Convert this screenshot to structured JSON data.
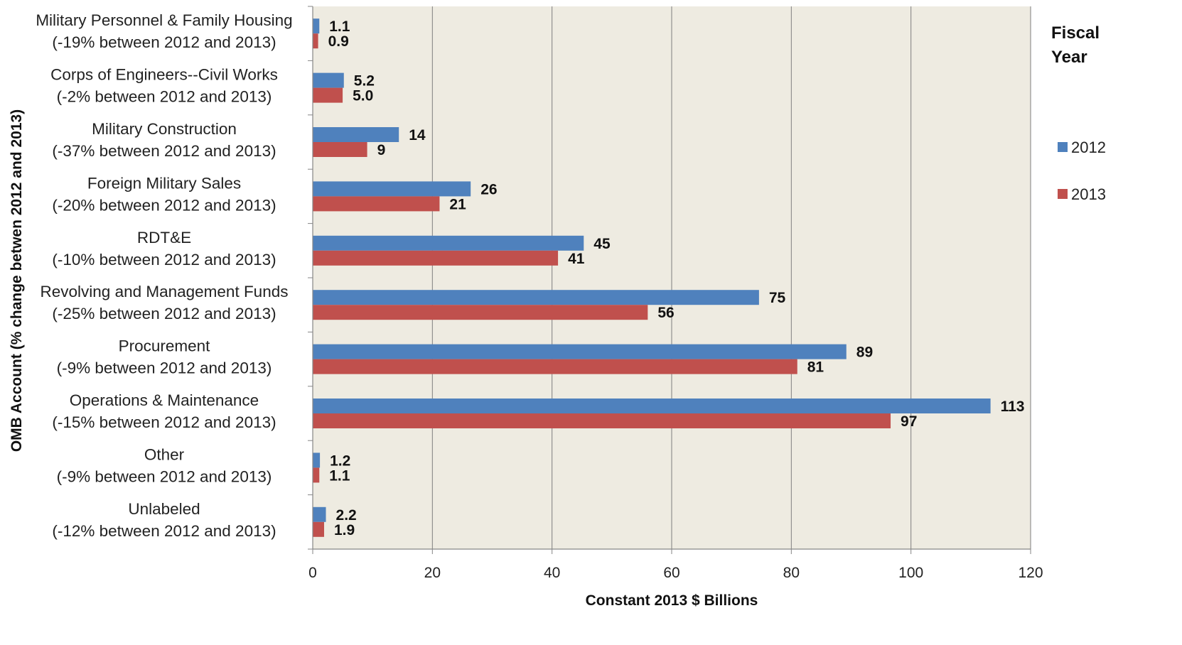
{
  "chart_data": {
    "type": "bar",
    "orientation": "horizontal",
    "xlabel": "Constant 2013 $ Billions",
    "ylabel": "OMB Account (% change betwen 2012 and 2013)",
    "xlim": [
      0,
      120
    ],
    "xticks": [
      "0",
      "20",
      "40",
      "60",
      "80",
      "100",
      "120"
    ],
    "grid": "vertical gridlines",
    "legend_title": [
      "Fiscal",
      "Year"
    ],
    "legend_position": "right",
    "categories": [
      {
        "name": "Military Personnel & Family Housing",
        "note": "(-19% between 2012 and 2013)"
      },
      {
        "name": "Corps of Engineers--Civil Works",
        "note": "(-2% between 2012 and 2013)"
      },
      {
        "name": "Military Construction",
        "note": "(-37% between 2012 and 2013)"
      },
      {
        "name": "Foreign Military Sales",
        "note": "(-20% between 2012 and 2013)"
      },
      {
        "name": "RDT&E",
        "note": "(-10% between 2012 and 2013)"
      },
      {
        "name": "Revolving and Management Funds",
        "note": "(-25% between 2012 and 2013)"
      },
      {
        "name": "Procurement",
        "note": "(-9% between 2012 and 2013)"
      },
      {
        "name": "Operations & Maintenance",
        "note": "(-15% between 2012 and 2013)"
      },
      {
        "name": "Other",
        "note": "(-9% between 2012 and 2013)"
      },
      {
        "name": "Unlabeled",
        "note": "(-12% between 2012 and 2013)"
      }
    ],
    "series": [
      {
        "name": "2012",
        "color": "#4f81bd",
        "values": [
          1.1,
          5.2,
          14.4,
          26.4,
          45.3,
          74.6,
          89.2,
          113.3,
          1.2,
          2.2
        ],
        "labels": [
          "1.1",
          "5.2",
          "14",
          "26",
          "45",
          "75",
          "89",
          "113",
          "1.2",
          "2.2"
        ]
      },
      {
        "name": "2013",
        "color": "#c0504d",
        "values": [
          0.9,
          5.0,
          9.1,
          21.2,
          41.0,
          56.0,
          81.0,
          96.6,
          1.1,
          1.9
        ],
        "labels": [
          "0.9",
          "5.0",
          "9",
          "21",
          "41",
          "56",
          "81",
          "97",
          "1.1",
          "1.9"
        ]
      }
    ],
    "colors": {
      "plot_background": "#eeebe1",
      "gridline": "#7f7f7f"
    }
  }
}
